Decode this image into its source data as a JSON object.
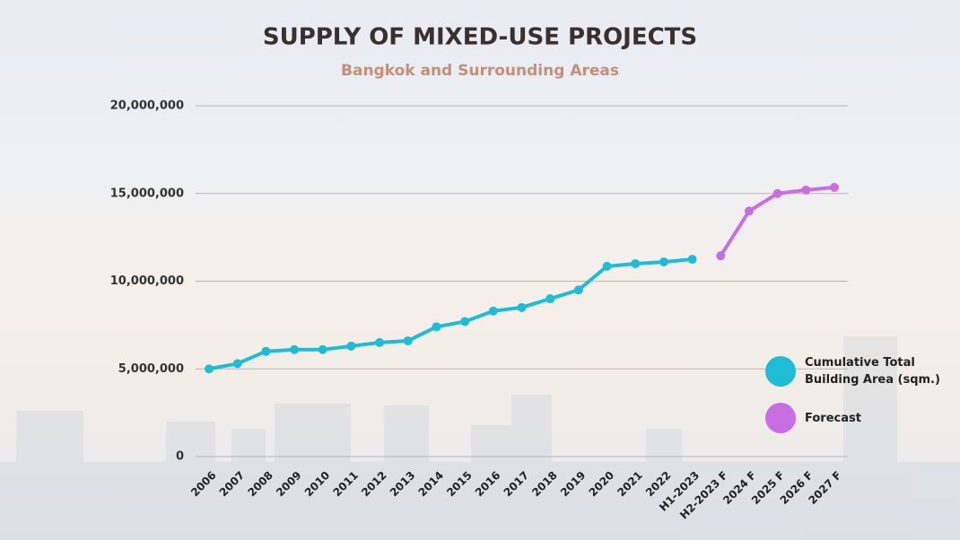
{
  "chart_data": {
    "type": "line",
    "title": "SUPPLY OF MIXED-USE PROJECTS",
    "subtitle": "Bangkok and Surrounding Areas",
    "categories": [
      "2006",
      "2007",
      "2008",
      "2009",
      "2010",
      "2011",
      "2012",
      "2013",
      "2014",
      "2015",
      "2016",
      "2017",
      "2018",
      "2019",
      "2020",
      "2021",
      "2022",
      "H1-2023",
      "H2-2023 F",
      "2024 F",
      "2025 F",
      "2026 F",
      "2027 F"
    ],
    "series": [
      {
        "name": "Cumulative Total Building Area (sqm.)",
        "color": "#1fbcd6",
        "values": [
          5000000,
          5300000,
          6000000,
          6100000,
          6100000,
          6300000,
          6500000,
          6600000,
          7400000,
          7700000,
          8300000,
          8500000,
          9000000,
          9500000,
          10850000,
          11000000,
          11100000,
          11250000,
          null,
          null,
          null,
          null,
          null
        ]
      },
      {
        "name": "Forecast",
        "color": "#c66ee2",
        "values": [
          null,
          null,
          null,
          null,
          null,
          null,
          null,
          null,
          null,
          null,
          null,
          null,
          null,
          null,
          null,
          null,
          null,
          null,
          11450000,
          14000000,
          15000000,
          15200000,
          15350000
        ]
      }
    ],
    "ylim": [
      0,
      20000000
    ],
    "yticks": [
      0,
      {
        "value": 5000000,
        "label": "5,000,000"
      },
      {
        "value": 10000000,
        "label": "10,000,000"
      },
      {
        "value": 15000000,
        "label": "15,000,000"
      },
      {
        "value": 20000000,
        "label": "20,000,000"
      }
    ],
    "grid": true
  }
}
